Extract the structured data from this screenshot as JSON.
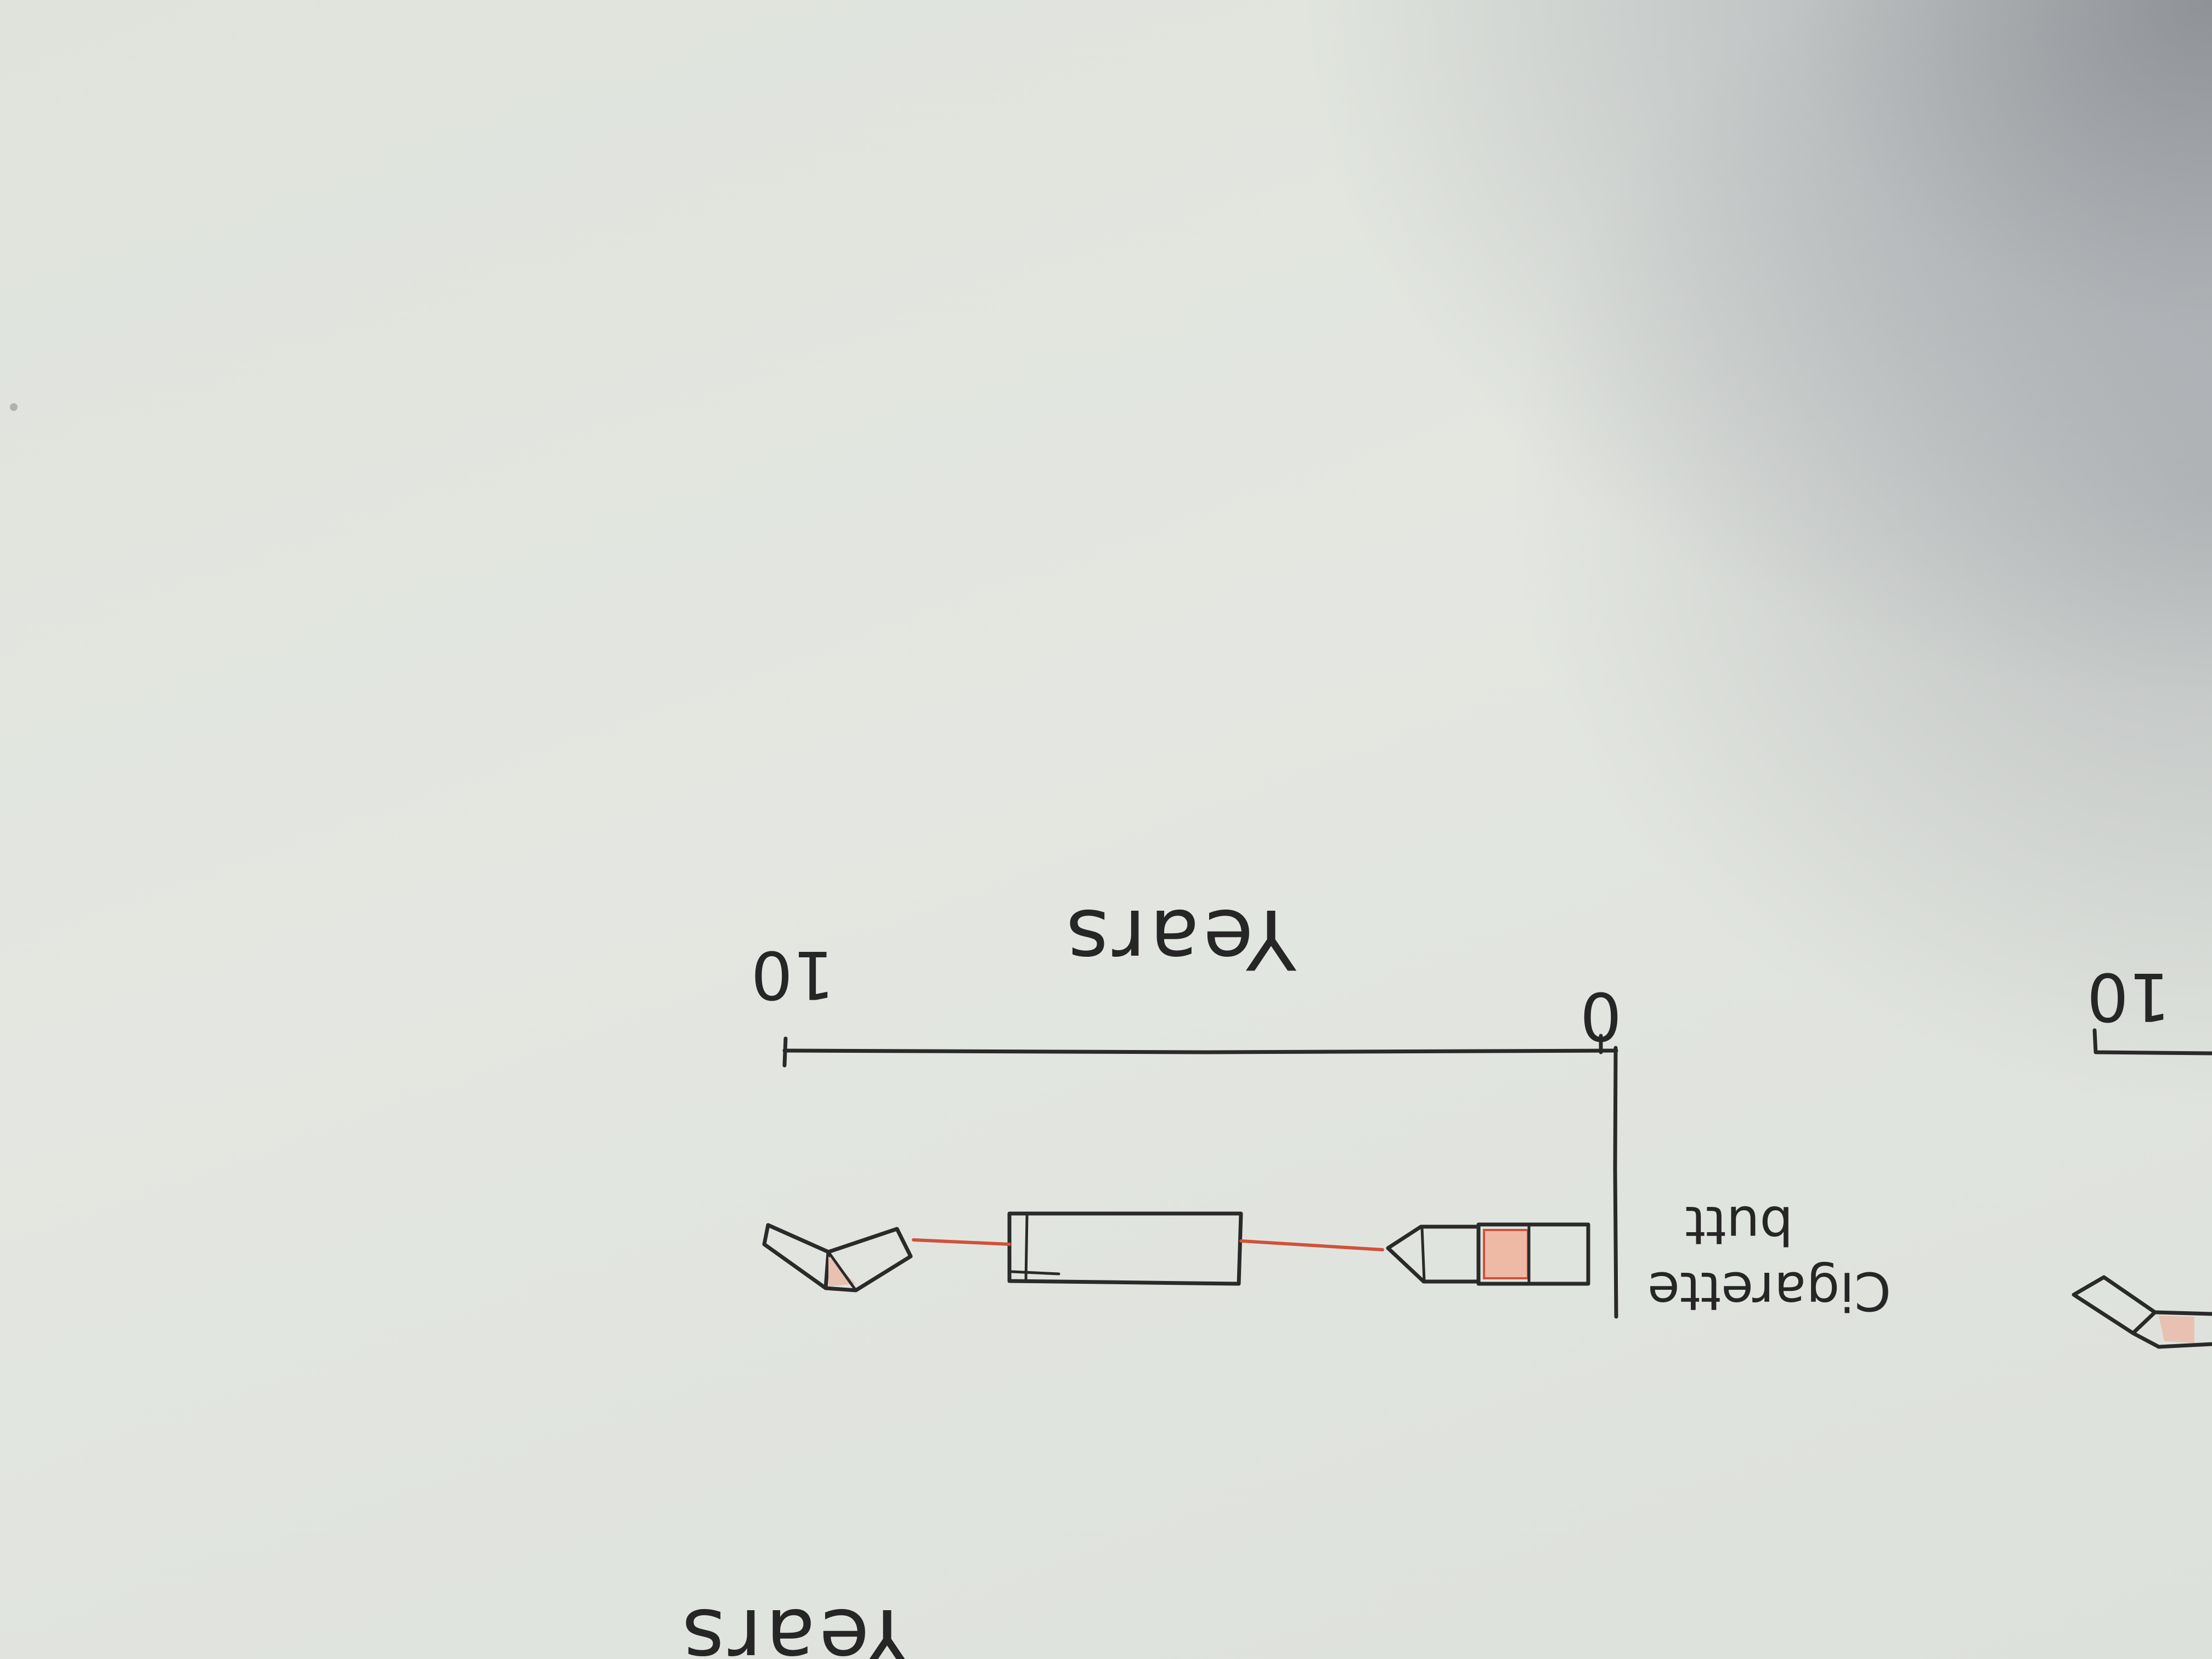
{
  "axis": {
    "title": "Years",
    "start_label": "0",
    "end_label": "10"
  },
  "item": {
    "label_line1": "Cigarette",
    "label_line2": "butt"
  },
  "next_panel": {
    "tick_label": "10",
    "axis_title_partial": "Years"
  },
  "colors": {
    "ink": "#2a2a2a",
    "filter_red": "#d0513a",
    "paper": "#e2e5df"
  }
}
